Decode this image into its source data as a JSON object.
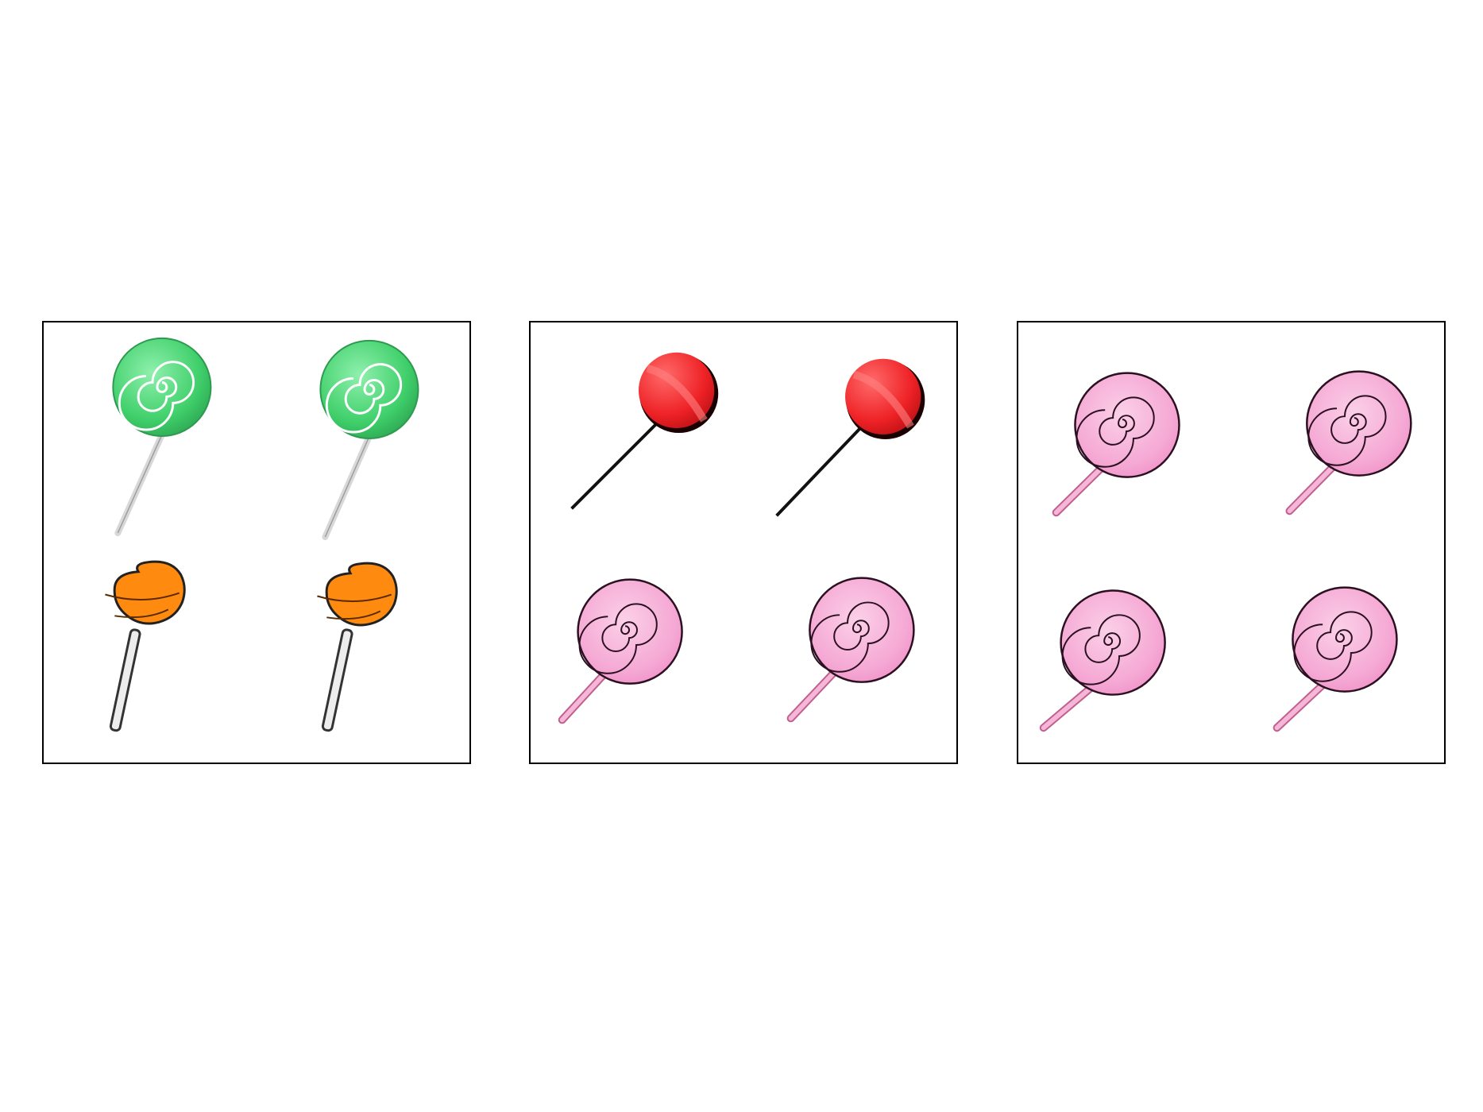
{
  "panels": [
    {
      "id": "panel-1",
      "items": [
        {
          "icon": "green-swirl-lollipop-icon"
        },
        {
          "icon": "green-swirl-lollipop-icon"
        },
        {
          "icon": "orange-lollipop-icon"
        },
        {
          "icon": "orange-lollipop-icon"
        }
      ]
    },
    {
      "id": "panel-2",
      "items": [
        {
          "icon": "red-lollipop-icon"
        },
        {
          "icon": "red-lollipop-icon"
        },
        {
          "icon": "pink-swirl-lollipop-icon"
        },
        {
          "icon": "pink-swirl-lollipop-icon"
        }
      ]
    },
    {
      "id": "panel-3",
      "items": [
        {
          "icon": "pink-swirl-lollipop-icon"
        },
        {
          "icon": "pink-swirl-lollipop-icon"
        },
        {
          "icon": "pink-swirl-lollipop-icon"
        },
        {
          "icon": "pink-swirl-lollipop-icon"
        }
      ]
    }
  ],
  "colors": {
    "green": "#4fd47a",
    "orange": "#ff8a10",
    "red": "#f0282c",
    "pink": "#f6a6d2",
    "border": "#000000"
  }
}
